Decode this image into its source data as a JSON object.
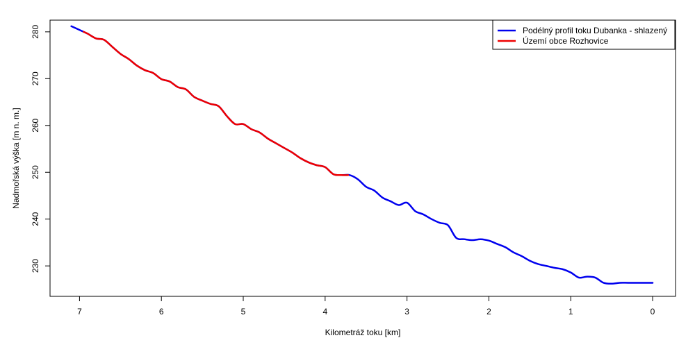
{
  "chart_data": {
    "type": "line",
    "title": "",
    "xlabel": "Kilometráž toku [km]",
    "ylabel": "Nadmořská výška [m n. m.]",
    "xlim": [
      7.36,
      -0.28
    ],
    "ylim": [
      223.5,
      282.5
    ],
    "x_reversed": true,
    "x_ticks": [
      7,
      6,
      5,
      4,
      3,
      2,
      1,
      0
    ],
    "y_ticks": [
      230,
      240,
      250,
      260,
      270,
      280
    ],
    "grid": false,
    "legend_position": "top-right",
    "series": [
      {
        "name": "Podélný profil toku Dubanka - shlazený",
        "color": "#0000ee",
        "x": [
          7.1,
          7.0,
          6.9,
          6.8,
          6.7,
          6.6,
          6.5,
          6.4,
          6.3,
          6.2,
          6.1,
          6.0,
          5.9,
          5.8,
          5.7,
          5.6,
          5.5,
          5.4,
          5.3,
          5.2,
          5.1,
          5.0,
          4.9,
          4.8,
          4.7,
          4.6,
          4.5,
          4.4,
          4.3,
          4.2,
          4.1,
          4.0,
          3.9,
          3.8,
          3.7,
          3.6,
          3.5,
          3.4,
          3.3,
          3.2,
          3.1,
          3.0,
          2.9,
          2.8,
          2.7,
          2.6,
          2.5,
          2.4,
          2.3,
          2.2,
          2.1,
          2.0,
          1.9,
          1.8,
          1.7,
          1.6,
          1.5,
          1.4,
          1.3,
          1.2,
          1.1,
          1.0,
          0.9,
          0.8,
          0.7,
          0.6,
          0.5,
          0.4,
          0.3,
          0.2,
          0.1,
          0.0
        ],
        "y": [
          281.2,
          280.4,
          279.6,
          278.6,
          278.3,
          276.8,
          275.3,
          274.2,
          272.8,
          271.8,
          271.2,
          269.9,
          269.4,
          268.2,
          267.7,
          266.1,
          265.3,
          264.6,
          264.1,
          262.0,
          260.3,
          260.3,
          259.2,
          258.5,
          257.2,
          256.2,
          255.2,
          254.2,
          253.0,
          252.1,
          251.5,
          251.1,
          249.6,
          249.4,
          249.4,
          248.5,
          246.9,
          246.1,
          244.6,
          243.8,
          243.0,
          243.5,
          241.7,
          241.0,
          240.0,
          239.2,
          238.7,
          236.0,
          235.7,
          235.5,
          235.7,
          235.4,
          234.7,
          234.0,
          232.9,
          232.1,
          231.1,
          230.4,
          230.0,
          229.6,
          229.3,
          228.6,
          227.5,
          227.7,
          227.5,
          226.4,
          226.2,
          226.4,
          226.4,
          226.4,
          226.4,
          226.4
        ],
        "lw": 2.5
      },
      {
        "name": "Území obce Rozhovice",
        "color": "#ee0000",
        "x": [
          6.95,
          6.9,
          6.8,
          6.7,
          6.6,
          6.5,
          6.4,
          6.3,
          6.2,
          6.1,
          6.0,
          5.9,
          5.8,
          5.7,
          5.6,
          5.5,
          5.4,
          5.3,
          5.2,
          5.1,
          5.0,
          4.9,
          4.8,
          4.7,
          4.6,
          4.5,
          4.4,
          4.3,
          4.2,
          4.1,
          4.0,
          3.9,
          3.8,
          3.72
        ],
        "y": [
          280.0,
          279.6,
          278.6,
          278.3,
          276.8,
          275.3,
          274.2,
          272.8,
          271.8,
          271.2,
          269.9,
          269.4,
          268.2,
          267.7,
          266.1,
          265.3,
          264.6,
          264.1,
          262.0,
          260.3,
          260.3,
          259.2,
          258.5,
          257.2,
          256.2,
          255.2,
          254.2,
          253.0,
          252.1,
          251.5,
          251.1,
          249.6,
          249.4,
          249.4
        ],
        "lw": 2.5
      }
    ]
  }
}
